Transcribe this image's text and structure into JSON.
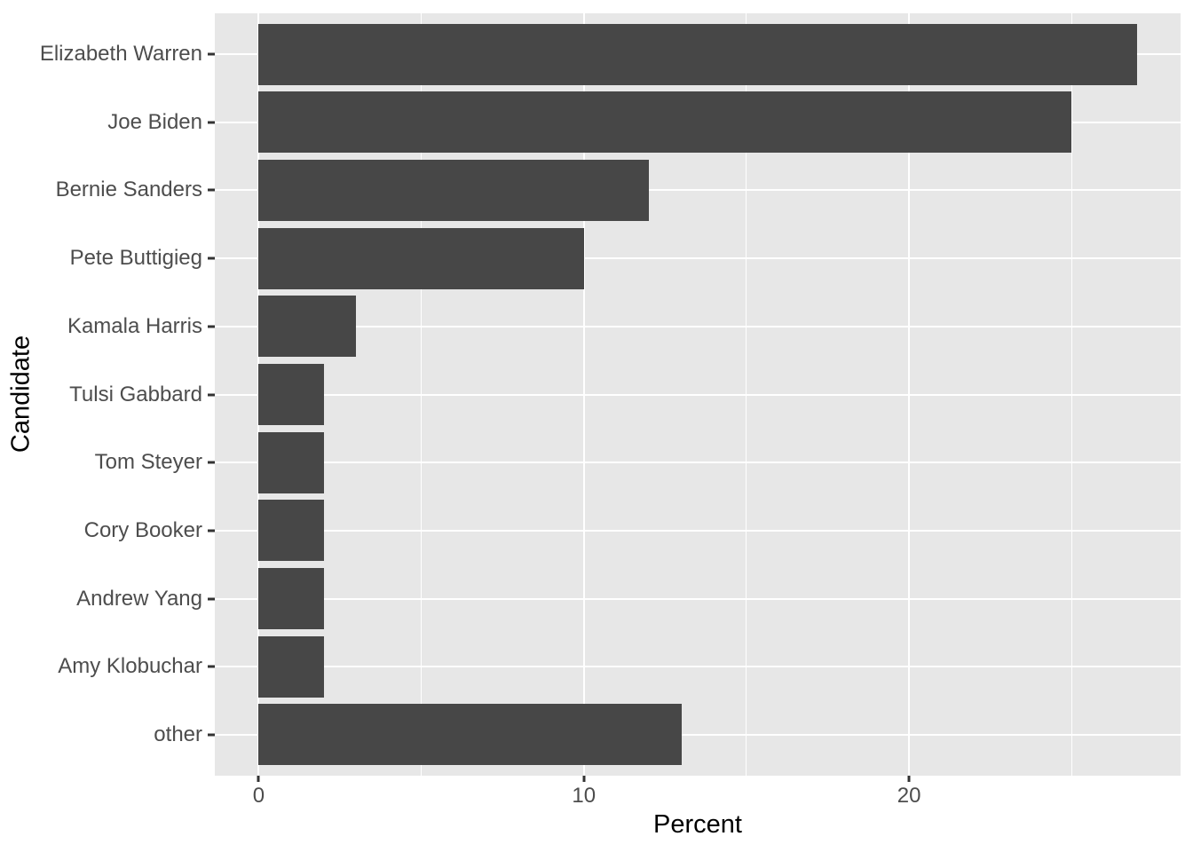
{
  "chart_data": {
    "type": "bar",
    "orientation": "horizontal",
    "title": "",
    "xlabel": "Percent",
    "ylabel": "Candidate",
    "categories": [
      "Elizabeth Warren",
      "Joe Biden",
      "Bernie Sanders",
      "Pete Buttigieg",
      "Kamala Harris",
      "Tulsi Gabbard",
      "Tom Steyer",
      "Cory Booker",
      "Andrew Yang",
      "Amy Klobuchar",
      "other"
    ],
    "values": [
      27,
      25,
      12,
      10,
      3,
      2,
      2,
      2,
      2,
      2,
      13
    ],
    "xlim": [
      0,
      27
    ],
    "x_major_ticks": [
      0,
      10,
      20
    ],
    "x_minor_gridlines": [
      5,
      15,
      25
    ],
    "grid": "on",
    "legend": "none",
    "style": "ggplot2-theme-grey"
  },
  "colors": {
    "bar": "#474747",
    "panel_background": "#E7E7E7",
    "gridline": "#FFFFFF",
    "tick_label": "#4D4D4D",
    "axis_title": "#000000",
    "tick_mark": "#333333",
    "page_background": "#FFFFFF"
  }
}
